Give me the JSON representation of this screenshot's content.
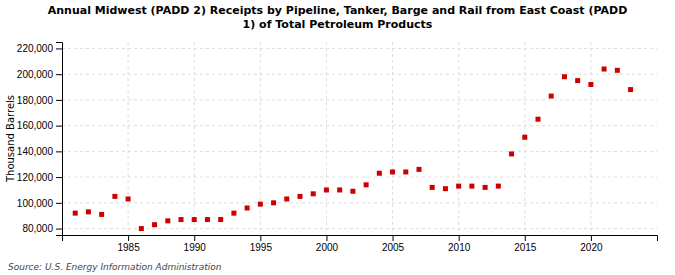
{
  "chart_data": {
    "type": "scatter",
    "title": "Annual Midwest (PADD 2) Receipts by Pipeline, Tanker, Barge and Rail from East Coast (PADD\n1) of Total Petroleum Products",
    "ylabel": "Thousand Barrels",
    "source": "Source: U.S. Energy Information Administration",
    "x": [
      1981,
      1982,
      1983,
      1984,
      1985,
      1986,
      1987,
      1988,
      1989,
      1990,
      1991,
      1992,
      1993,
      1994,
      1995,
      1996,
      1997,
      1998,
      1999,
      2000,
      2001,
      2002,
      2003,
      2004,
      2005,
      2006,
      2007,
      2008,
      2009,
      2010,
      2011,
      2012,
      2013,
      2014,
      2015,
      2016,
      2017,
      2018,
      2019,
      2020,
      2021,
      2022,
      2023
    ],
    "values": [
      92000,
      93000,
      91000,
      105000,
      103000,
      80000,
      83000,
      86000,
      87000,
      87000,
      87000,
      87000,
      92000,
      96000,
      99000,
      100000,
      103000,
      105000,
      107000,
      110000,
      110000,
      109000,
      114000,
      123000,
      124000,
      124000,
      126000,
      112000,
      111000,
      113000,
      113000,
      112000,
      113000,
      138000,
      151000,
      165000,
      183000,
      198000,
      195000,
      192000,
      204000,
      203000,
      188000
    ],
    "color": "#cc0000",
    "marker": "square",
    "xlim": [
      1980,
      2025
    ],
    "xticks": [
      1985,
      1990,
      1995,
      2000,
      2005,
      2010,
      2015,
      2020
    ],
    "ylim": [
      75000,
      225000
    ],
    "yticks": [
      {
        "value": 80000,
        "label": "80,000"
      },
      {
        "value": 100000,
        "label": "100,000"
      },
      {
        "value": 120000,
        "label": "120,000"
      },
      {
        "value": 140000,
        "label": "140,000"
      },
      {
        "value": 160000,
        "label": "160,000"
      },
      {
        "value": 180000,
        "label": "180,000"
      },
      {
        "value": 200000,
        "label": "200,000"
      },
      {
        "value": 220000,
        "label": "220,000"
      }
    ],
    "grid": true
  }
}
